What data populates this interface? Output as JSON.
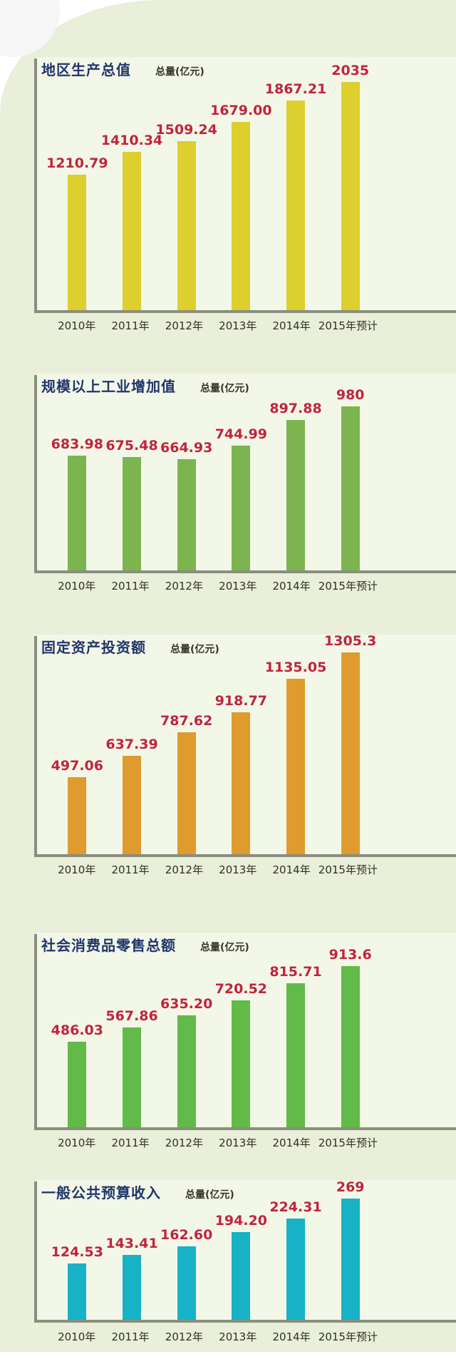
{
  "theme": {
    "page_bg": "#ffffff",
    "panel_bg": "#e9efd8",
    "plot_bg": "#f3f7e8",
    "axis_color": "#8a8e80",
    "title_color": "#21356b",
    "value_color": "#c0243e",
    "xlabel_color": "#2f2f28"
  },
  "unit_label": "总量(亿元)",
  "chart_data": [
    {
      "type": "bar",
      "title": "地区生产总值",
      "unit": "总量(亿元)",
      "categories": [
        "2010年",
        "2011年",
        "2012年",
        "2013年",
        "2014年",
        "2015年预计"
      ],
      "values": [
        1210.79,
        1410.34,
        1509.24,
        1679.0,
        1867.21,
        2035
      ],
      "labels": [
        "1210.79",
        "1410.34",
        "1509.24",
        "1679.00",
        "1867.21",
        "2035"
      ],
      "color": "#ddcf2e",
      "ylim": [
        0,
        2035
      ],
      "xlabel": "",
      "ylabel": "总量(亿元)",
      "grid": false,
      "legend": "none"
    },
    {
      "type": "bar",
      "title": "规模以上工业增加值",
      "unit": "总量(亿元)",
      "categories": [
        "2010年",
        "2011年",
        "2012年",
        "2013年",
        "2014年",
        "2015年预计"
      ],
      "values": [
        683.98,
        675.48,
        664.93,
        744.99,
        897.88,
        980
      ],
      "labels": [
        "683.98",
        "675.48",
        "664.93",
        "744.99",
        "897.88",
        "980"
      ],
      "color": "#7cb450",
      "ylim": [
        0,
        980
      ],
      "xlabel": "",
      "ylabel": "总量(亿元)",
      "grid": false,
      "legend": "none"
    },
    {
      "type": "bar",
      "title": "固定资产投资额",
      "unit": "总量(亿元)",
      "categories": [
        "2010年",
        "2011年",
        "2012年",
        "2013年",
        "2014年",
        "2015年预计"
      ],
      "values": [
        497.06,
        637.39,
        787.62,
        918.77,
        1135.05,
        1305.3
      ],
      "labels": [
        "497.06",
        "637.39",
        "787.62",
        "918.77",
        "1135.05",
        "1305.3"
      ],
      "color": "#df9b2e",
      "ylim": [
        0,
        1305.3
      ],
      "xlabel": "",
      "ylabel": "总量(亿元)",
      "grid": false,
      "legend": "none"
    },
    {
      "type": "bar",
      "title": "社会消费品零售总额",
      "unit": "总量(亿元)",
      "categories": [
        "2010年",
        "2011年",
        "2012年",
        "2013年",
        "2014年",
        "2015年预计"
      ],
      "values": [
        486.03,
        567.86,
        635.2,
        720.52,
        815.71,
        913.6
      ],
      "labels": [
        "486.03",
        "567.86",
        "635.20",
        "720.52",
        "815.71",
        "913.6"
      ],
      "color": "#62ba49",
      "ylim": [
        0,
        913.6
      ],
      "xlabel": "",
      "ylabel": "总量(亿元)",
      "grid": false,
      "legend": "none"
    },
    {
      "type": "bar",
      "title": "一般公共预算收入",
      "unit": "总量(亿元)",
      "categories": [
        "2010年",
        "2011年",
        "2012年",
        "2013年",
        "2014年",
        "2015年预计"
      ],
      "values": [
        124.53,
        143.41,
        162.6,
        194.2,
        224.31,
        269
      ],
      "labels": [
        "124.53",
        "143.41",
        "162.60",
        "194.20",
        "224.31",
        "269"
      ],
      "color": "#18b2c6",
      "ylim": [
        0,
        269
      ],
      "xlabel": "",
      "ylabel": "总量(亿元)",
      "grid": false,
      "legend": "none"
    }
  ]
}
